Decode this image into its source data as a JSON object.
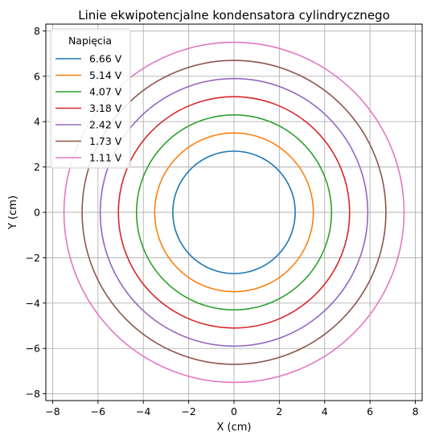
{
  "chart_data": {
    "type": "line",
    "title": "Linie ekwipotencjalne kondensatora cylindrycznego",
    "xlabel": "X (cm)",
    "ylabel": "Y (cm)",
    "xlim": [
      -8.3,
      8.3
    ],
    "ylim": [
      -8.3,
      8.3
    ],
    "xticks": [
      -8,
      -6,
      -4,
      -2,
      0,
      2,
      4,
      6,
      8
    ],
    "yticks": [
      -8,
      -6,
      -4,
      -2,
      0,
      2,
      4,
      6,
      8
    ],
    "grid": true,
    "legend": {
      "title": "Napięcia",
      "placement": "top-left"
    },
    "series": [
      {
        "name": "6.66 V",
        "shape": "circle",
        "center": [
          0,
          0
        ],
        "radius": 2.7,
        "color": "#1f77b4"
      },
      {
        "name": "5.14 V",
        "shape": "circle",
        "center": [
          0,
          0
        ],
        "radius": 3.5,
        "color": "#ff7f0e"
      },
      {
        "name": "4.07 V",
        "shape": "circle",
        "center": [
          0,
          0
        ],
        "radius": 4.3,
        "color": "#2ca02c"
      },
      {
        "name": "3.18 V",
        "shape": "circle",
        "center": [
          0,
          0
        ],
        "radius": 5.1,
        "color": "#d62728"
      },
      {
        "name": "2.42 V",
        "shape": "circle",
        "center": [
          0,
          0
        ],
        "radius": 5.9,
        "color": "#9467bd"
      },
      {
        "name": "1.73 V",
        "shape": "circle",
        "center": [
          0,
          0
        ],
        "radius": 6.7,
        "color": "#8c564b"
      },
      {
        "name": "1.11 V",
        "shape": "circle",
        "center": [
          0,
          0
        ],
        "radius": 7.5,
        "color": "#e377c2"
      }
    ]
  }
}
